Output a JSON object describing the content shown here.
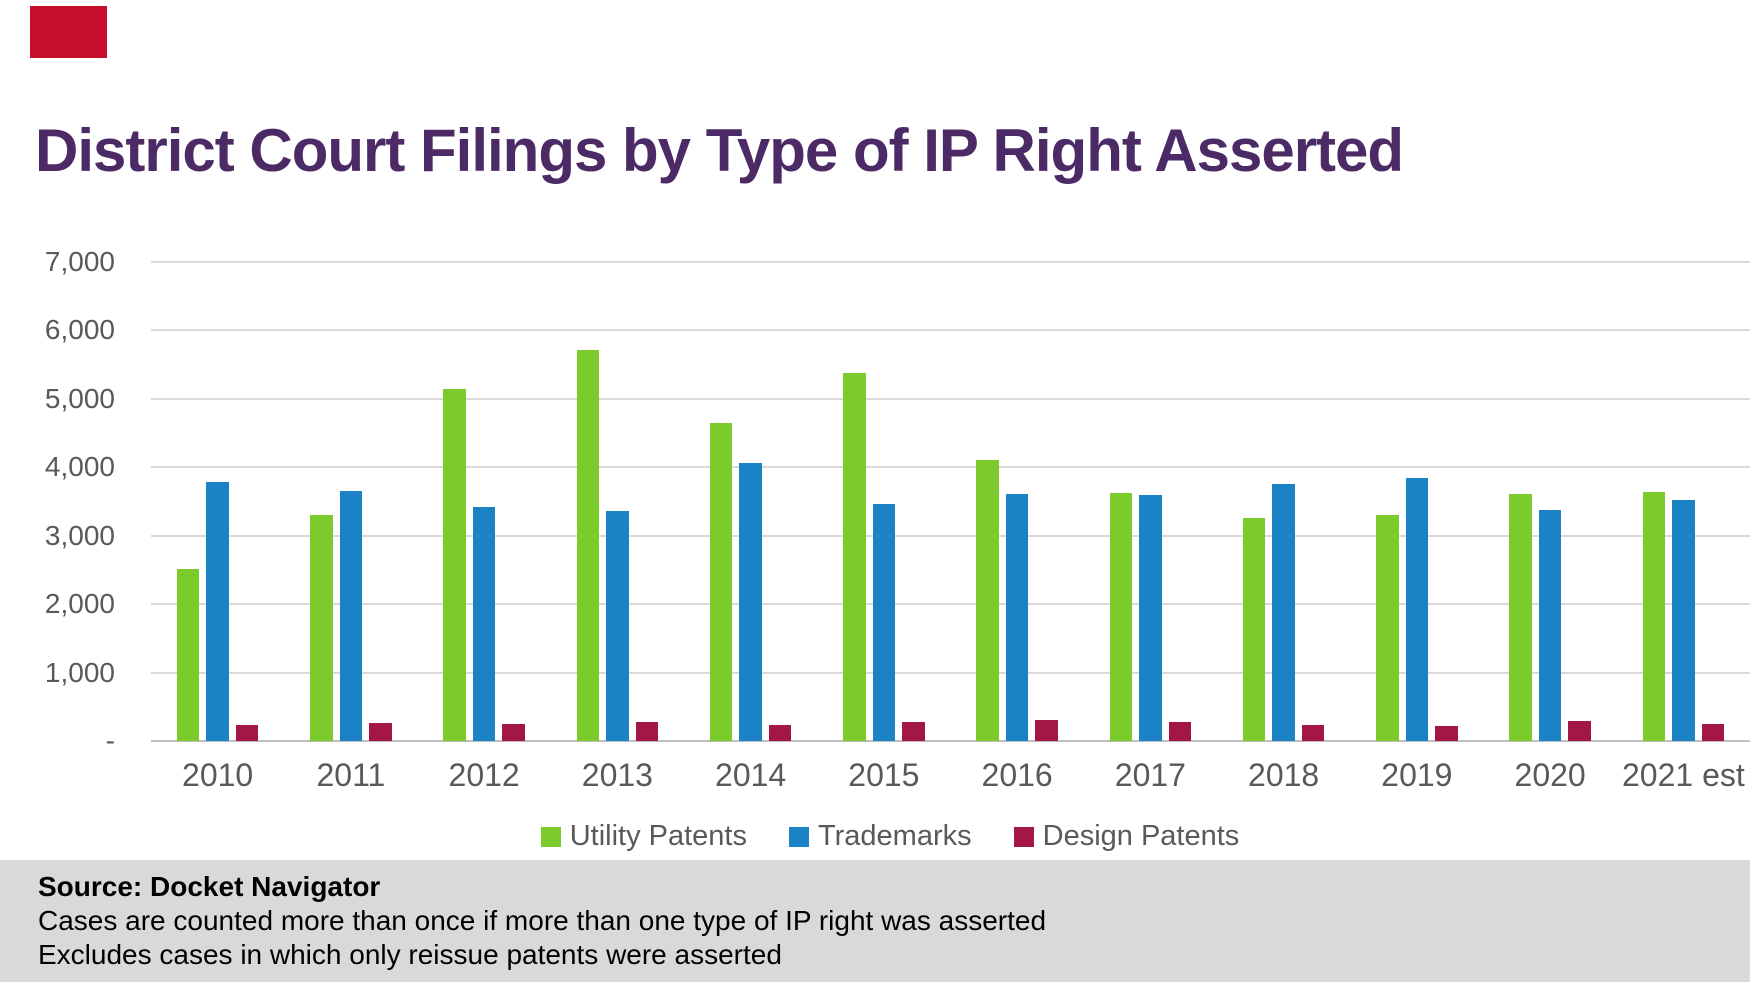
{
  "accent": {
    "color": "#c8102e"
  },
  "title": {
    "text": "District Court Filings by Type of IP Right Asserted",
    "color": "#4b2a66"
  },
  "chart_data": {
    "type": "bar",
    "title": "District Court Filings by Type of IP Right Asserted",
    "categories": [
      "2010",
      "2011",
      "2012",
      "2013",
      "2014",
      "2015",
      "2016",
      "2017",
      "2018",
      "2019",
      "2020",
      "2021 est"
    ],
    "series": [
      {
        "name": "Utility Patents",
        "color": "#7ccb2d",
        "values": [
          2510,
          3300,
          5140,
          5720,
          4650,
          5380,
          4100,
          3630,
          3260,
          3300,
          3610,
          3640
        ]
      },
      {
        "name": "Trademarks",
        "color": "#1b82c5",
        "values": [
          3780,
          3660,
          3420,
          3360,
          4070,
          3470,
          3610,
          3600,
          3750,
          3840,
          3380,
          3520
        ]
      },
      {
        "name": "Design Patents",
        "color": "#a21748",
        "values": [
          230,
          260,
          250,
          280,
          230,
          280,
          310,
          280,
          230,
          220,
          290,
          250
        ]
      }
    ],
    "xlabel": "",
    "ylabel": "",
    "ylim": [
      0,
      7000
    ],
    "ytick_interval": 1000,
    "yticks": [
      {
        "value": 7000,
        "label": "7,000"
      },
      {
        "value": 6000,
        "label": "6,000"
      },
      {
        "value": 5000,
        "label": "5,000"
      },
      {
        "value": 4000,
        "label": "4,000"
      },
      {
        "value": 3000,
        "label": "3,000"
      },
      {
        "value": 2000,
        "label": "2,000"
      },
      {
        "value": 1000,
        "label": "1,000"
      },
      {
        "value": 0,
        "label": "-"
      }
    ],
    "grid": true,
    "gridline_color": "#d9d9d9",
    "axis_text_color": "#595959",
    "legend_position": "bottom"
  },
  "footer": {
    "source_label": "Source: Docket Navigator",
    "note1": "Cases are counted more than once if more than one type of IP right was asserted",
    "note2": "Excludes cases in which only reissue patents were asserted"
  }
}
